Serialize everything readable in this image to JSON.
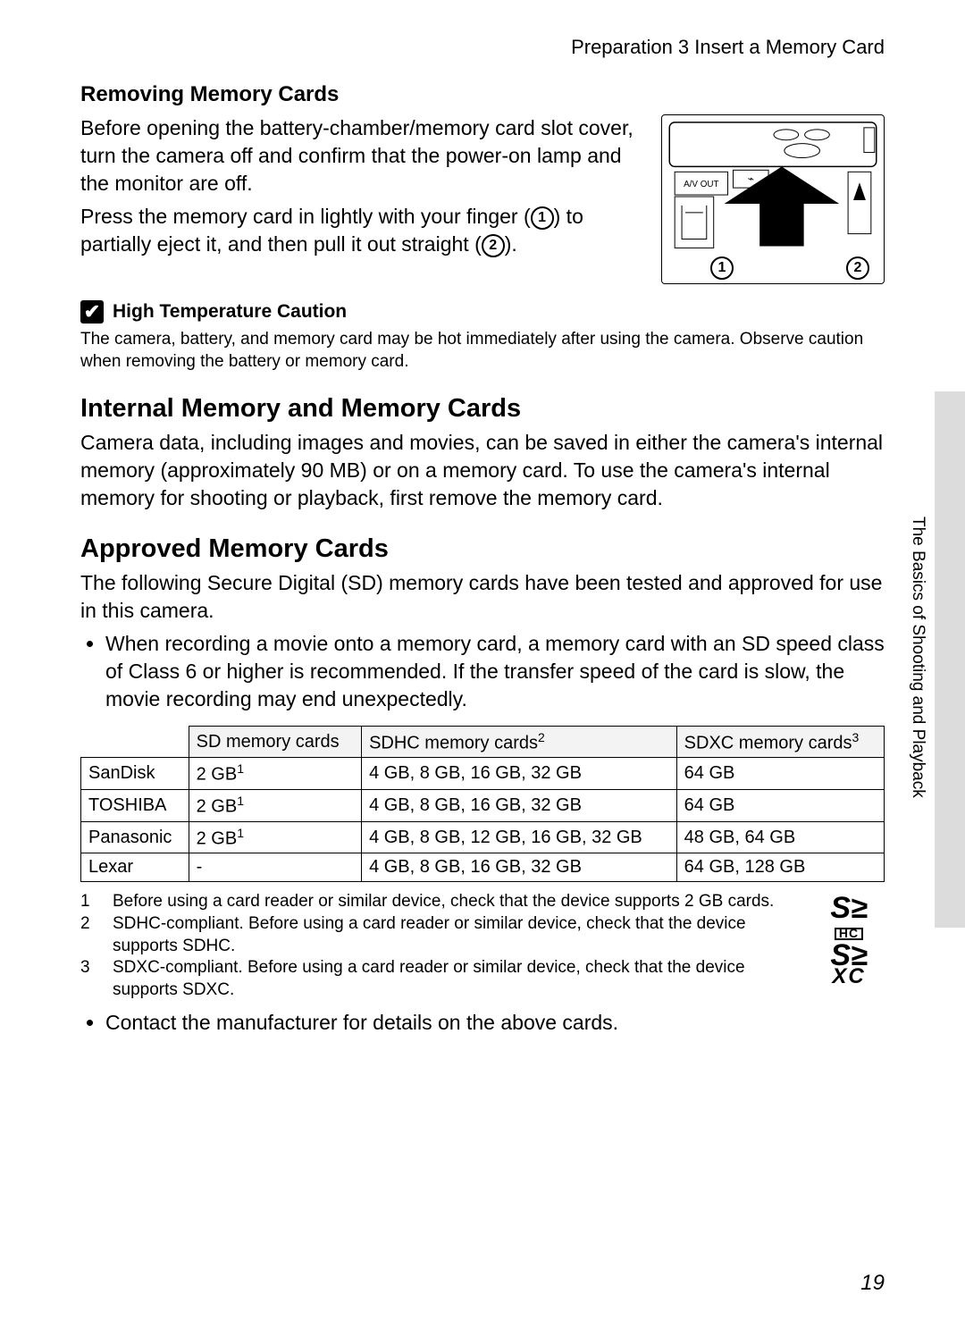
{
  "header": "Preparation 3 Insert a Memory Card",
  "section_removing": {
    "title": "Removing Memory Cards",
    "para1": "Before opening the battery-chamber/memory card slot cover, turn the camera off and confirm that the power-on lamp and the monitor are off.",
    "para2_a": "Press the memory card in lightly with your finger (",
    "para2_b": ") to partially eject it, and then pull it out straight (",
    "para2_c": ").",
    "illus_av_label": "A/V OUT"
  },
  "caution": {
    "icon_glyph": "✔",
    "title": "High Temperature Caution",
    "body": "The camera, battery, and memory card may be hot immediately after using the camera. Observe caution when removing the battery or memory card."
  },
  "section_internal": {
    "title": "Internal Memory and Memory Cards",
    "body": "Camera data, including images and movies, can be saved in either the camera's internal memory (approximately 90 MB) or on a memory card. To use the camera's internal memory for shooting or playback, first remove the memory card."
  },
  "section_approved": {
    "title": "Approved Memory Cards",
    "intro": "The following Secure Digital (SD) memory cards have been tested and approved for use in this camera.",
    "bullet": "When recording a movie onto a memory card, a memory card with an SD speed class of Class 6 or higher is recommended. If the transfer speed of the card is slow, the movie recording may end unexpectedly."
  },
  "table": {
    "headers": [
      "",
      "SD memory cards",
      "SDHC memory cards",
      "SDXC memory cards"
    ],
    "header_sups": [
      "",
      "",
      "2",
      "3"
    ],
    "rows": [
      {
        "mfr": "SanDisk",
        "sd": "2 GB",
        "sd_sup": "1",
        "sdhc": "4 GB, 8 GB, 16 GB, 32 GB",
        "sdxc": "64 GB"
      },
      {
        "mfr": "TOSHIBA",
        "sd": "2 GB",
        "sd_sup": "1",
        "sdhc": "4 GB, 8 GB, 16 GB, 32 GB",
        "sdxc": "64 GB"
      },
      {
        "mfr": "Panasonic",
        "sd": "2 GB",
        "sd_sup": "1",
        "sdhc": "4 GB, 8 GB, 12 GB, 16 GB, 32 GB",
        "sdxc": "48 GB, 64 GB"
      },
      {
        "mfr": "Lexar",
        "sd": "-",
        "sd_sup": "",
        "sdhc": "4 GB, 8 GB, 16 GB, 32 GB",
        "sdxc": "64 GB, 128 GB"
      }
    ]
  },
  "footnotes": [
    {
      "n": "1",
      "t": "Before using a card reader or similar device, check that the device supports 2 GB cards."
    },
    {
      "n": "2",
      "t": "SDHC-compliant. Before using a card reader or similar device, check that the device supports SDHC."
    },
    {
      "n": "3",
      "t": "SDXC-compliant. Before using a card reader or similar device, check that the device supports SDXC."
    }
  ],
  "post_bullet": "Contact the manufacturer for details on the above cards.",
  "side_label": "The Basics of Shooting and Playback",
  "page_number": "19",
  "colors": {
    "side_tab_bg": "#dcdcdc",
    "table_header_bg": "#f3f3f3"
  }
}
